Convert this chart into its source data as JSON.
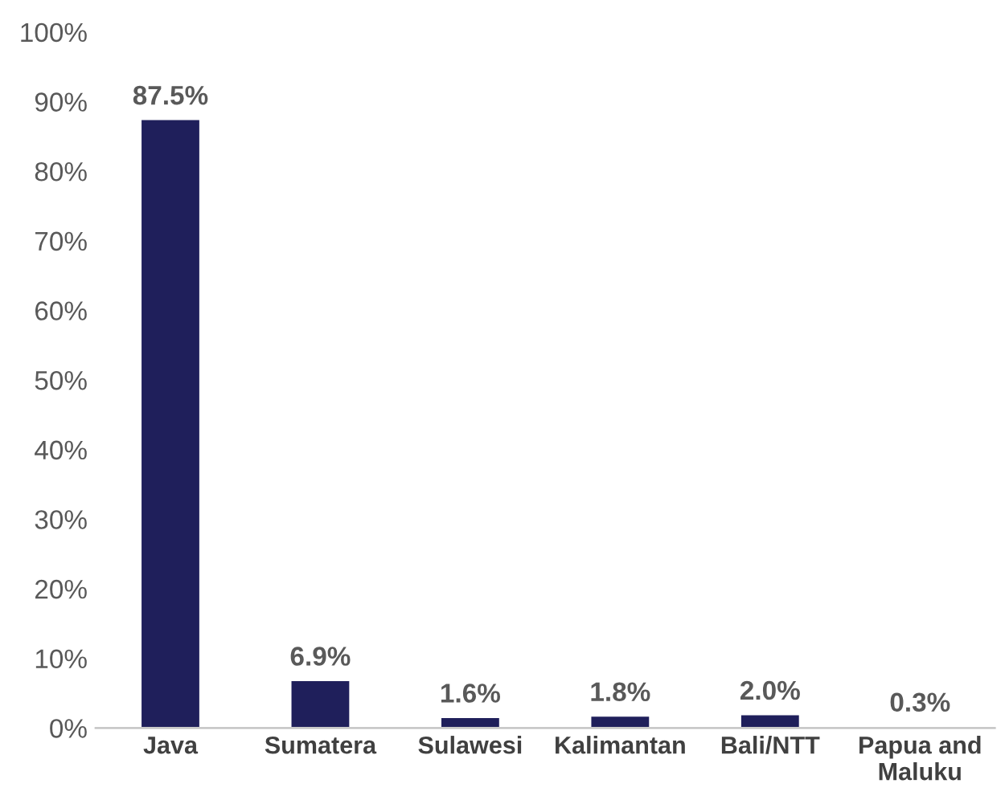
{
  "chart_data": {
    "type": "bar",
    "categories": [
      "Java",
      "Sumatera",
      "Sulawesi",
      "Kalimantan",
      "Bali/NTT",
      "Papua and\nMaluku"
    ],
    "values": [
      87.5,
      6.9,
      1.6,
      1.8,
      2.0,
      0.3
    ],
    "value_labels": [
      "87.5%",
      "6.9%",
      "1.6%",
      "1.8%",
      "2.0%",
      "0.3%"
    ],
    "color": "#1f1f5b",
    "ylim": [
      0,
      100
    ],
    "yticks": [
      {
        "value": 0,
        "label": "0%"
      },
      {
        "value": 10,
        "label": "10%"
      },
      {
        "value": 20,
        "label": "20%"
      },
      {
        "value": 30,
        "label": "30%"
      },
      {
        "value": 40,
        "label": "40%"
      },
      {
        "value": 50,
        "label": "50%"
      },
      {
        "value": 60,
        "label": "60%"
      },
      {
        "value": 70,
        "label": "70%"
      },
      {
        "value": 80,
        "label": "80%"
      },
      {
        "value": 90,
        "label": "90%"
      },
      {
        "value": 100,
        "label": "100%"
      }
    ],
    "grid": false,
    "legend": false
  }
}
